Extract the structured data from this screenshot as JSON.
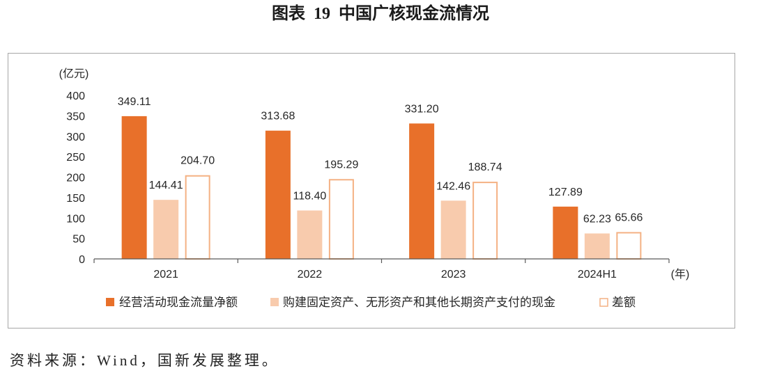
{
  "source": "资料来源：Wind，国新发展整理。",
  "chart_data": {
    "type": "bar",
    "title": "图表 19 中国广核现金流情况",
    "categories": [
      "2021",
      "2022",
      "2023",
      "2024H1"
    ],
    "series": [
      {
        "name": "经营活动现金流量净额",
        "values": [
          349.11,
          313.68,
          331.2,
          127.89
        ],
        "fill": "#E8702A"
      },
      {
        "name": "购建固定资产、无形资产和其他长期资产支付的现金",
        "values": [
          144.41,
          118.4,
          142.46,
          62.23
        ],
        "fill": "#F8CBAD"
      },
      {
        "name": "差额",
        "values": [
          204.7,
          195.29,
          188.74,
          65.66
        ],
        "fill": "#FFFFFF",
        "stroke": "#F4B183"
      }
    ],
    "xlabel": "(年)",
    "ylabel": "(亿元)",
    "ylim": [
      0,
      400
    ],
    "yticks": [
      0,
      50,
      100,
      150,
      200,
      250,
      300,
      350,
      400
    ],
    "grid": false,
    "legend": "bottom",
    "data_labels": true
  }
}
